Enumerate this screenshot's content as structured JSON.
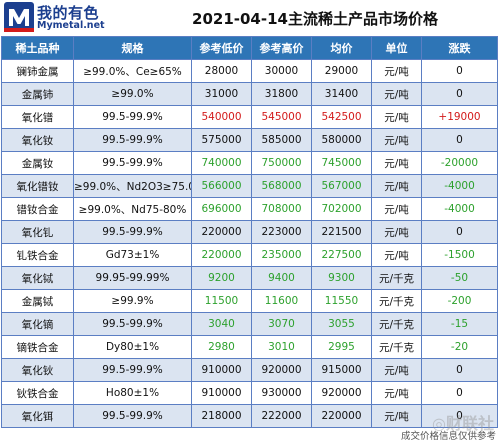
{
  "brand": {
    "name": "我的有色",
    "site": "Mymetal.net",
    "colors": {
      "primary": "#1c3f8f",
      "accent": "#d31b1b"
    }
  },
  "title": "2021-04-14主流稀土产品市场价格",
  "table": {
    "headers": [
      "稀土品种",
      "规格",
      "参考低价",
      "参考高价",
      "均价",
      "单位",
      "涨跌"
    ],
    "colors": {
      "header_bg": "#2e75b6",
      "row_alt_bg": "#dbe4f1",
      "up": "#d31b1b",
      "down": "#2da12d"
    },
    "rows": [
      {
        "name": "镧铈金属",
        "spec": "≥99.0%、Ce≥65%",
        "low": "28000",
        "high": "30000",
        "avg": "29000",
        "unit": "元/吨",
        "change": "0",
        "trend": "flat"
      },
      {
        "name": "金属铈",
        "spec": "≥99.0%",
        "low": "31000",
        "high": "31800",
        "avg": "31400",
        "unit": "元/吨",
        "change": "0",
        "trend": "flat"
      },
      {
        "name": "氧化镨",
        "spec": "99.5-99.9%",
        "low": "540000",
        "high": "545000",
        "avg": "542500",
        "unit": "元/吨",
        "change": "+19000",
        "trend": "up"
      },
      {
        "name": "氧化钕",
        "spec": "99.5-99.9%",
        "low": "575000",
        "high": "585000",
        "avg": "580000",
        "unit": "元/吨",
        "change": "0",
        "trend": "flat"
      },
      {
        "name": "金属钕",
        "spec": "99.5-99.9%",
        "low": "740000",
        "high": "750000",
        "avg": "745000",
        "unit": "元/吨",
        "change": "-20000",
        "trend": "down"
      },
      {
        "name": "氧化镨钕",
        "spec": "≥99.0%、Nd2O3≥75.0%",
        "low": "566000",
        "high": "568000",
        "avg": "567000",
        "unit": "元/吨",
        "change": "-4000",
        "trend": "down"
      },
      {
        "name": "镨钕合金",
        "spec": "≥99.0%、Nd75-80%",
        "low": "696000",
        "high": "708000",
        "avg": "702000",
        "unit": "元/吨",
        "change": "-4000",
        "trend": "down"
      },
      {
        "name": "氧化钆",
        "spec": "99.5-99.9%",
        "low": "220000",
        "high": "223000",
        "avg": "221500",
        "unit": "元/吨",
        "change": "0",
        "trend": "flat"
      },
      {
        "name": "钆铁合金",
        "spec": "Gd73±1%",
        "low": "220000",
        "high": "235000",
        "avg": "227500",
        "unit": "元/吨",
        "change": "-1500",
        "trend": "down"
      },
      {
        "name": "氧化铽",
        "spec": "99.95-99.99%",
        "low": "9200",
        "high": "9400",
        "avg": "9300",
        "unit": "元/千克",
        "change": "-50",
        "trend": "down"
      },
      {
        "name": "金属铽",
        "spec": "≥99.9%",
        "low": "11500",
        "high": "11600",
        "avg": "11550",
        "unit": "元/千克",
        "change": "-200",
        "trend": "down"
      },
      {
        "name": "氧化镝",
        "spec": "99.5-99.9%",
        "low": "3040",
        "high": "3070",
        "avg": "3055",
        "unit": "元/千克",
        "change": "-15",
        "trend": "down"
      },
      {
        "name": "镝铁合金",
        "spec": "Dy80±1%",
        "low": "2980",
        "high": "3010",
        "avg": "2995",
        "unit": "元/千克",
        "change": "-20",
        "trend": "down"
      },
      {
        "name": "氧化钬",
        "spec": "99.5-99.9%",
        "low": "910000",
        "high": "920000",
        "avg": "915000",
        "unit": "元/吨",
        "change": "0",
        "trend": "flat"
      },
      {
        "name": "钬铁合金",
        "spec": "Ho80±1%",
        "low": "910000",
        "high": "930000",
        "avg": "920000",
        "unit": "元/吨",
        "change": "0",
        "trend": "flat"
      },
      {
        "name": "氧化铒",
        "spec": "99.5-99.9%",
        "low": "218000",
        "high": "222000",
        "avg": "220000",
        "unit": "元/吨",
        "change": "0",
        "trend": "flat"
      }
    ]
  },
  "footer": {
    "note": "成交价格信息仅供参考",
    "watermark": "◎财联社"
  }
}
